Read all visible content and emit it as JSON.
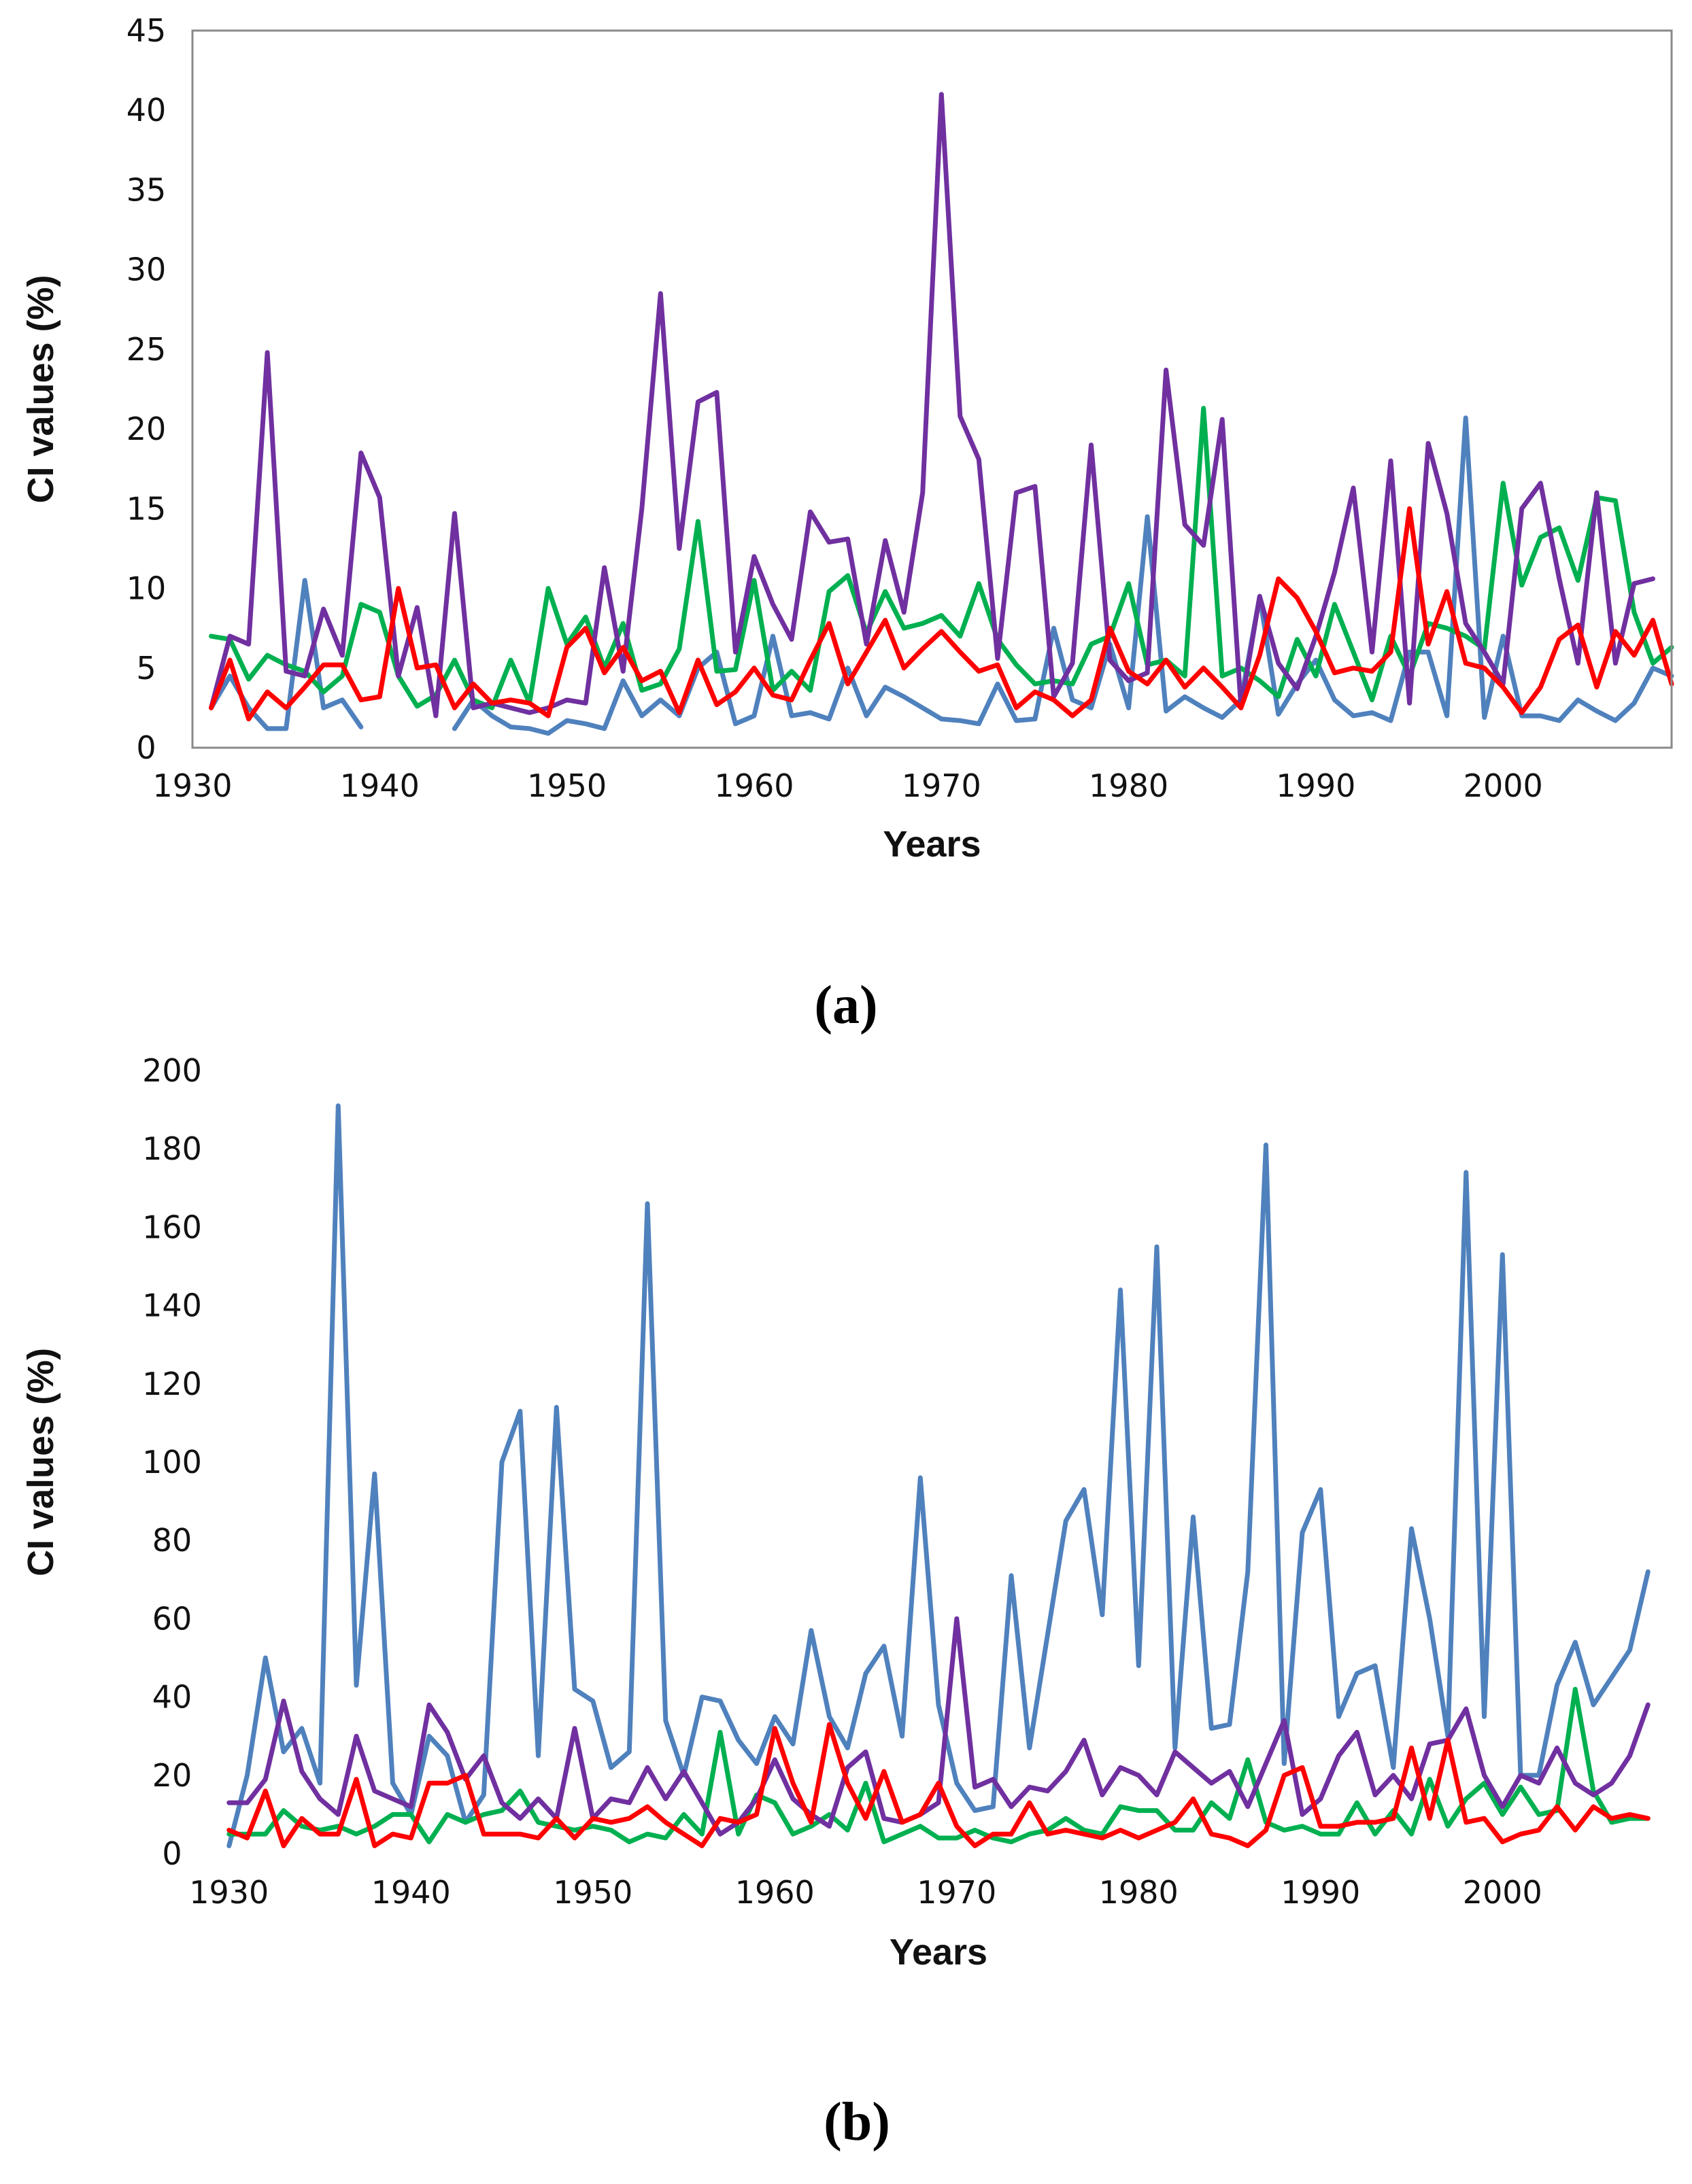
{
  "figure": {
    "panels": [
      {
        "caption": "(a)",
        "caption_letter": "a"
      },
      {
        "caption": "(b)",
        "caption_letter": "b"
      }
    ]
  },
  "chart_data": [
    {
      "id": "a",
      "type": "line",
      "title": "",
      "xlabel": "Years",
      "ylabel": "CI values (%)",
      "xlim": [
        1930,
        2009
      ],
      "ylim": [
        0,
        45
      ],
      "xticks": [
        1930,
        1940,
        1950,
        1960,
        1970,
        1980,
        1990,
        2000
      ],
      "yticks": [
        0,
        5,
        10,
        15,
        20,
        25,
        30,
        35,
        40,
        45
      ],
      "grid": false,
      "legend": "none",
      "x": [
        1931,
        1932,
        1933,
        1934,
        1935,
        1936,
        1937,
        1938,
        1939,
        1940,
        1941,
        1942,
        1943,
        1944,
        1945,
        1946,
        1947,
        1948,
        1949,
        1950,
        1951,
        1952,
        1953,
        1954,
        1955,
        1956,
        1957,
        1958,
        1959,
        1960,
        1961,
        1962,
        1963,
        1964,
        1965,
        1966,
        1967,
        1968,
        1969,
        1970,
        1971,
        1972,
        1973,
        1974,
        1975,
        1976,
        1977,
        1978,
        1979,
        1980,
        1981,
        1982,
        1983,
        1984,
        1985,
        1986,
        1987,
        1988,
        1989,
        1990,
        1991,
        1992,
        1993,
        1994,
        1995,
        1996,
        1997,
        1998,
        1999,
        2000,
        2001,
        2002,
        2003,
        2004,
        2005,
        2006,
        2007,
        2008,
        2009
      ],
      "series": [
        {
          "name": "blue",
          "color": "#4F81BD",
          "values": [
            2.5,
            4.5,
            2.5,
            1.2,
            1.2,
            10.5,
            2.5,
            3,
            1.3,
            null,
            null,
            null,
            null,
            1.2,
            3,
            2,
            1.3,
            1.2,
            0.9,
            1.7,
            1.5,
            1.2,
            4.2,
            2,
            3,
            2,
            5,
            6,
            1.5,
            2,
            7,
            2,
            2.2,
            1.8,
            5,
            2,
            3.8,
            3.2,
            2.5,
            1.8,
            1.7,
            1.5,
            4,
            1.7,
            1.8,
            7.5,
            3,
            2.5,
            6.5,
            2.5,
            14.5,
            2.3,
            3.2,
            2.5,
            1.9,
            3,
            9.5,
            2.1,
            4,
            5.5,
            3,
            2,
            2.2,
            1.7,
            6,
            6,
            2,
            20.7,
            1.9,
            7,
            2,
            2,
            1.7,
            3,
            2.3,
            1.7,
            2.8,
            5,
            4.5
          ]
        },
        {
          "name": "green",
          "color": "#00B050",
          "values": [
            7,
            6.8,
            4.3,
            5.8,
            5.2,
            4.8,
            3.5,
            4.5,
            9,
            8.5,
            4.5,
            2.6,
            3.3,
            5.5,
            3,
            2.5,
            5.5,
            2.8,
            10,
            6.5,
            8.2,
            5,
            7.8,
            3.6,
            4,
            6.2,
            14.2,
            4.8,
            4.9,
            10.5,
            3.6,
            4.8,
            3.6,
            9.8,
            10.8,
            7.2,
            9.8,
            7.5,
            7.8,
            8.3,
            7,
            10.3,
            6.8,
            5.2,
            4,
            4.2,
            4,
            6.5,
            7,
            10.3,
            5.2,
            5.5,
            4.5,
            21.3,
            4.5,
            5,
            4.2,
            3.2,
            6.8,
            4.5,
            9,
            6,
            3,
            7,
            4.5,
            7.8,
            7.5,
            7,
            6.2,
            16.6,
            10.2,
            13.2,
            13.8,
            10.5,
            15.7,
            15.5,
            8.5,
            5.3,
            6.3
          ]
        },
        {
          "name": "purple",
          "color": "#7030A0",
          "values": [
            2.5,
            7,
            6.5,
            24.8,
            4.8,
            4.5,
            8.7,
            5.8,
            18.5,
            15.7,
            4.5,
            8.8,
            2,
            14.7,
            2.5,
            2.8,
            2.5,
            2.2,
            2.5,
            3,
            2.8,
            11.3,
            4.8,
            15,
            28.5,
            12.5,
            21.7,
            22.3,
            6,
            12,
            9,
            6.8,
            14.8,
            12.9,
            13.1,
            6.5,
            13,
            8.5,
            16,
            41,
            20.8,
            18.1,
            5.6,
            16,
            16.4,
            3.2,
            5.3,
            19,
            5.5,
            4.2,
            4.7,
            23.7,
            14,
            12.7,
            20.6,
            2.5,
            9.5,
            5.3,
            3.7,
            7,
            11,
            16.3,
            6,
            18,
            2.8,
            19.1,
            14.7,
            7.8,
            6,
            4,
            15,
            16.6,
            10.6,
            5.3,
            16,
            5.3,
            10.3,
            10.6,
            null
          ]
        },
        {
          "name": "red",
          "color": "#FF0000",
          "values": [
            2.5,
            5.5,
            1.8,
            3.5,
            2.5,
            3.8,
            5.2,
            5.2,
            3,
            3.2,
            10,
            5,
            5.2,
            2.5,
            4,
            2.8,
            3,
            2.8,
            2,
            6.3,
            7.5,
            4.7,
            6.3,
            4.2,
            4.8,
            2.2,
            5.5,
            2.7,
            3.5,
            5,
            3.3,
            3,
            5.5,
            7.8,
            4,
            6,
            8,
            5,
            6.2,
            7.3,
            6,
            4.8,
            5.2,
            2.5,
            3.5,
            3,
            2,
            3,
            7.5,
            4.8,
            4,
            5.5,
            3.8,
            5,
            3.8,
            2.5,
            5.8,
            10.6,
            9.4,
            7.3,
            4.7,
            5,
            4.8,
            6,
            15,
            6.5,
            9.8,
            5.3,
            5,
            3.8,
            2.2,
            3.8,
            6.8,
            7.7,
            3.8,
            7.3,
            5.8,
            8,
            4
          ]
        }
      ]
    },
    {
      "id": "b",
      "type": "line",
      "title": "",
      "xlabel": "Years",
      "ylabel": "CI values (%)",
      "xlim": [
        1929,
        2009
      ],
      "ylim": [
        0,
        200
      ],
      "xticks": [
        1930,
        1940,
        1950,
        1960,
        1970,
        1980,
        1990,
        2000
      ],
      "yticks": [
        0,
        20,
        40,
        60,
        80,
        100,
        120,
        140,
        160,
        180,
        200
      ],
      "grid": false,
      "legend": "none",
      "x": [
        1930,
        1931,
        1932,
        1933,
        1934,
        1935,
        1936,
        1937,
        1938,
        1939,
        1940,
        1941,
        1942,
        1943,
        1944,
        1945,
        1946,
        1947,
        1948,
        1949,
        1950,
        1951,
        1952,
        1953,
        1954,
        1955,
        1956,
        1957,
        1958,
        1959,
        1960,
        1961,
        1962,
        1963,
        1964,
        1965,
        1966,
        1967,
        1968,
        1969,
        1970,
        1971,
        1972,
        1973,
        1974,
        1975,
        1976,
        1977,
        1978,
        1979,
        1980,
        1981,
        1982,
        1983,
        1984,
        1985,
        1986,
        1987,
        1988,
        1989,
        1990,
        1991,
        1992,
        1993,
        1994,
        1995,
        1996,
        1997,
        1998,
        1999,
        2000,
        2001,
        2002,
        2003,
        2004,
        2005,
        2006,
        2007,
        2008
      ],
      "series": [
        {
          "name": "blue",
          "color": "#4F81BD",
          "values": [
            2,
            20,
            50,
            26,
            32,
            18,
            191,
            43,
            97,
            18,
            10,
            30,
            25,
            8,
            15,
            100,
            113,
            25,
            114,
            42,
            39,
            22,
            26,
            166,
            34,
            20,
            40,
            39,
            29,
            23,
            35,
            28,
            57,
            35,
            27,
            46,
            53,
            30,
            96,
            38,
            18,
            11,
            12,
            71,
            27,
            56,
            85,
            93,
            61,
            144,
            48,
            155,
            27,
            86,
            32,
            33,
            72,
            181,
            23,
            82,
            93,
            35,
            46,
            48,
            22,
            83,
            60,
            30,
            174,
            35,
            153,
            20,
            20,
            43,
            54,
            38,
            45,
            52,
            72
          ]
        },
        {
          "name": "green",
          "color": "#00B050",
          "values": [
            5,
            5,
            5,
            11,
            7,
            6,
            7,
            5,
            7,
            10,
            10,
            3,
            10,
            8,
            10,
            11,
            16,
            8,
            7,
            6,
            7,
            6,
            3,
            5,
            4,
            10,
            5,
            31,
            5,
            15,
            13,
            5,
            7,
            10,
            6,
            18,
            3,
            5,
            7,
            4,
            4,
            6,
            4,
            3,
            5,
            6,
            9,
            6,
            5,
            12,
            11,
            11,
            6,
            6,
            13,
            9,
            24,
            8,
            6,
            7,
            5,
            5,
            13,
            5,
            11,
            5,
            19,
            7,
            14,
            18,
            10,
            17,
            10,
            11,
            42,
            16,
            8,
            9,
            9
          ]
        },
        {
          "name": "purple",
          "color": "#7030A0",
          "values": [
            13,
            13,
            19,
            39,
            21,
            14,
            10,
            30,
            16,
            14,
            12,
            38,
            31,
            19,
            25,
            13,
            9,
            14,
            9,
            32,
            9,
            14,
            13,
            22,
            14,
            21,
            13,
            5,
            8,
            14,
            24,
            14,
            10,
            7,
            22,
            26,
            9,
            8,
            10,
            13,
            60,
            17,
            19,
            12,
            17,
            16,
            21,
            29,
            15,
            22,
            20,
            15,
            26,
            22,
            18,
            21,
            12,
            23,
            34,
            10,
            14,
            25,
            31,
            15,
            20,
            14,
            28,
            29,
            37,
            20,
            12,
            20,
            18,
            27,
            18,
            15,
            18,
            25,
            38
          ]
        },
        {
          "name": "red",
          "color": "#FF0000",
          "values": [
            6,
            4,
            16,
            2,
            9,
            5,
            5,
            19,
            2,
            5,
            4,
            18,
            18,
            20,
            5,
            5,
            5,
            4,
            9,
            4,
            9,
            8,
            9,
            12,
            8,
            5,
            2,
            9,
            8,
            10,
            32,
            18,
            8,
            33,
            18,
            9,
            21,
            8,
            10,
            18,
            7,
            2,
            5,
            5,
            13,
            5,
            6,
            5,
            4,
            6,
            4,
            6,
            8,
            14,
            5,
            4,
            2,
            6,
            20,
            22,
            7,
            7,
            8,
            8,
            9,
            27,
            9,
            29,
            8,
            9,
            3,
            5,
            6,
            12,
            6,
            12,
            9,
            10,
            9
          ]
        }
      ]
    }
  ]
}
